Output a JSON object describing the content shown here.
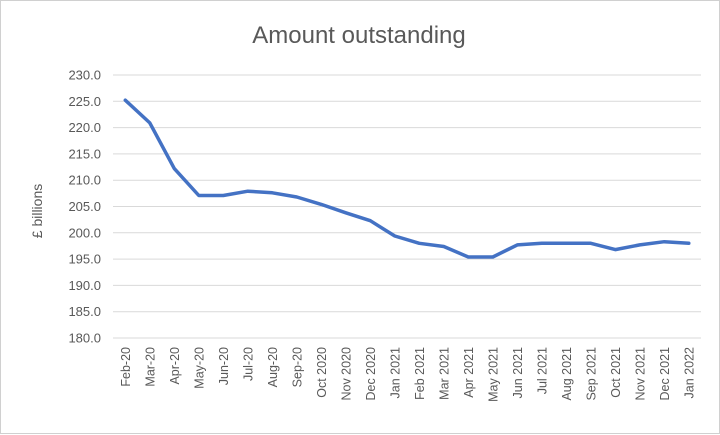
{
  "chart_data": {
    "type": "line",
    "title": "Amount outstanding",
    "xlabel": "",
    "ylabel": "£ billions",
    "ylim": [
      180,
      230
    ],
    "y_ticks": [
      "230.0",
      "225.0",
      "220.0",
      "215.0",
      "210.0",
      "205.0",
      "200.0",
      "195.0",
      "190.0",
      "185.0",
      "180.0"
    ],
    "grid": true,
    "legend": "none",
    "colors": {
      "line": "#4472c4",
      "grid": "#d9d9d9",
      "text": "#595959"
    },
    "categories": [
      "Feb-20",
      "Mar-20",
      "Apr-20",
      "May-20",
      "Jun-20",
      "Jul-20",
      "Aug-20",
      "Sep-20",
      "Oct 2020",
      "Nov 2020",
      "Dec 2020",
      "Jan 2021",
      "Feb 2021",
      "Mar 2021",
      "Apr 2021",
      "May 2021",
      "Jun 2021",
      "Jul 2021",
      "Aug 2021",
      "Sep 2021",
      "Oct 2021",
      "Nov 2021",
      "Dec 2021",
      "Jan 2022"
    ],
    "series": [
      {
        "values": [
          225.2,
          220.9,
          212.2,
          207.1,
          207.1,
          207.9,
          207.6,
          206.8,
          205.4,
          203.8,
          202.3,
          199.4,
          198.0,
          197.4,
          195.4,
          195.4,
          197.7,
          198.0,
          198.0,
          198.0,
          196.8,
          197.7,
          198.3,
          198.0
        ]
      }
    ]
  }
}
